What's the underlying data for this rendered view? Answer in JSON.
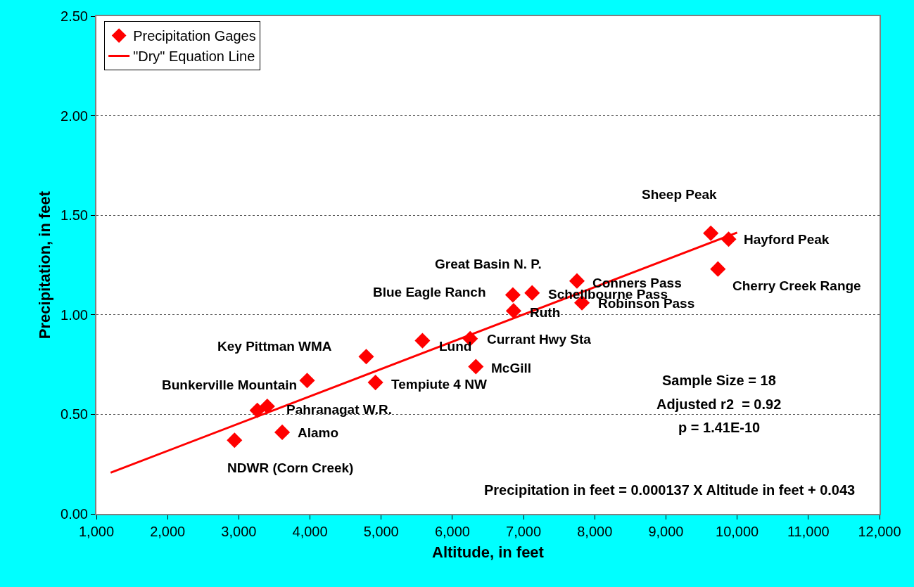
{
  "chart_data": {
    "type": "scatter",
    "xlabel": "Altitude, in feet",
    "ylabel": "Precipitation, in feet",
    "xlim": [
      1000,
      12000
    ],
    "xticks": [
      {
        "value": 1000,
        "label": "1,000"
      },
      {
        "value": 2000,
        "label": "2,000"
      },
      {
        "value": 3000,
        "label": "3,000"
      },
      {
        "value": 4000,
        "label": "4,000"
      },
      {
        "value": 5000,
        "label": "5,000"
      },
      {
        "value": 6000,
        "label": "6,000"
      },
      {
        "value": 7000,
        "label": "7,000"
      },
      {
        "value": 8000,
        "label": "8,000"
      },
      {
        "value": 9000,
        "label": "9,000"
      },
      {
        "value": 10000,
        "label": "10,000"
      },
      {
        "value": 11000,
        "label": "11,000"
      },
      {
        "value": 12000,
        "label": "12,000"
      }
    ],
    "ylim": [
      0,
      2.5
    ],
    "yticks": [
      {
        "value": 0,
        "label": "0.00"
      },
      {
        "value": 0.5,
        "label": "0.50"
      },
      {
        "value": 1,
        "label": "1.00"
      },
      {
        "value": 1.5,
        "label": "1.50"
      },
      {
        "value": 2,
        "label": "2.00"
      },
      {
        "value": 2.5,
        "label": "2.50"
      }
    ],
    "grid": "y",
    "legend": "top left",
    "series": [
      {
        "name": "Precipitation Gages",
        "marker": "diamond",
        "color": "#ff0000",
        "x": [
          2940,
          3260,
          3400,
          3610,
          3960,
          4790,
          4920,
          5580,
          6250,
          6330,
          6850,
          6860,
          7120,
          7750,
          7820,
          9630,
          9880,
          9730
        ],
        "values": [
          0.37,
          0.52,
          0.54,
          0.41,
          0.67,
          0.79,
          0.66,
          0.87,
          0.88,
          0.74,
          1.1,
          1.02,
          1.11,
          1.17,
          1.06,
          1.41,
          1.38,
          1.23
        ]
      },
      {
        "name": "\"Dry\" Equation Line",
        "type": "line",
        "marker": "none",
        "line_style": "solid",
        "color": "#ff0000",
        "x": [
          1200,
          10000
        ],
        "values": [
          0.207,
          1.413
        ]
      }
    ],
    "annotations": [
      {
        "text": "Sheep Peak",
        "x": 9630,
        "y": 1.41
      },
      {
        "text": "Hayford Peak",
        "x": 9880,
        "y": 1.38
      },
      {
        "text": "Great Basin N. P.",
        "x": 6850,
        "y": 1.1
      },
      {
        "text": "Conners Pass",
        "x": 7750,
        "y": 1.17
      },
      {
        "text": "Blue Eagle Ranch",
        "x": 6850,
        "y": 1.1
      },
      {
        "text": "Schellbourne Pass",
        "x": 7120,
        "y": 1.11
      },
      {
        "text": "Cherry Creek Range",
        "x": 9730,
        "y": 1.23
      },
      {
        "text": "Robinson Pass",
        "x": 7820,
        "y": 1.06
      },
      {
        "text": "Ruth",
        "x": 6860,
        "y": 1.02
      },
      {
        "text": "Currant Hwy Sta",
        "x": 6250,
        "y": 0.88
      },
      {
        "text": "Key Pittman WMA",
        "x": 4790,
        "y": 0.79
      },
      {
        "text": "Lund",
        "x": 5580,
        "y": 0.87
      },
      {
        "text": "McGill",
        "x": 6330,
        "y": 0.74
      },
      {
        "text": "Bunkerville Mountain",
        "x": 3960,
        "y": 0.67
      },
      {
        "text": "Tempiute 4 NW",
        "x": 4920,
        "y": 0.66
      },
      {
        "text": "Pahranagat W.R.",
        "x": 3400,
        "y": 0.54
      },
      {
        "text": "Alamo",
        "x": 3610,
        "y": 0.41
      },
      {
        "text": "NDWR (Corn Creek)",
        "x": 2940,
        "y": 0.37
      },
      "Sample Size = 18",
      "Adjusted r2  = 0.92",
      "p = 1.41E-10",
      "Precipitation in feet = 0.000137 X Altitude in feet + 0.043"
    ]
  }
}
